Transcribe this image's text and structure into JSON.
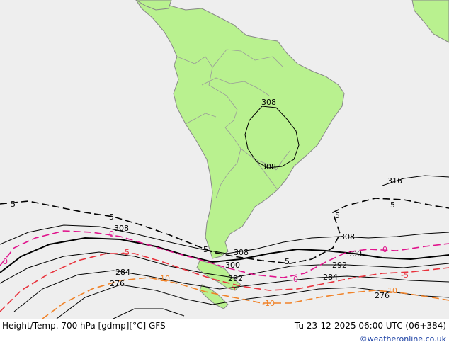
{
  "footer": {
    "title_left": "Height/Temp. 700 hPa [gdmp][°C] GFS",
    "title_right": "Tu 23-12-2025 06:00 UTC (06+384)",
    "credit": "©weatheronline.co.uk"
  },
  "colors": {
    "ocean": "#eeeeee",
    "land": "#b9f18f",
    "coast": "#888888",
    "height_contour": "#000000",
    "temp_0": "#e0148c",
    "temp_minus5": "#e8323c",
    "temp_minus10": "#f08228"
  },
  "labels": {
    "h308_brazil_top": "308",
    "h308_brazil_bottom": "308",
    "h316": "316",
    "h308_left": "308",
    "h308_mid": "308",
    "h308_right": "308",
    "h300_mid": "300",
    "h300_right": "300",
    "h292_mid": "292",
    "h292_right": "292",
    "h284_left": "284",
    "h284_right": "284",
    "h276_left": "276",
    "h276_right": "276",
    "t5_left": "5",
    "t5_leftmid": "5",
    "t5_mid": "5",
    "t5_right": "5'",
    "t5_east": "5",
    "t5_center": "5",
    "t0_left": "0",
    "t0_mid": "0",
    "t0_right": "0",
    "t0_east": "0",
    "tm5_left": "-5",
    "tm5_mid": "-5",
    "tm5_right": "-5",
    "tm10_left": "-10",
    "tm10_mid": "-10",
    "tm10_right": "-10"
  }
}
